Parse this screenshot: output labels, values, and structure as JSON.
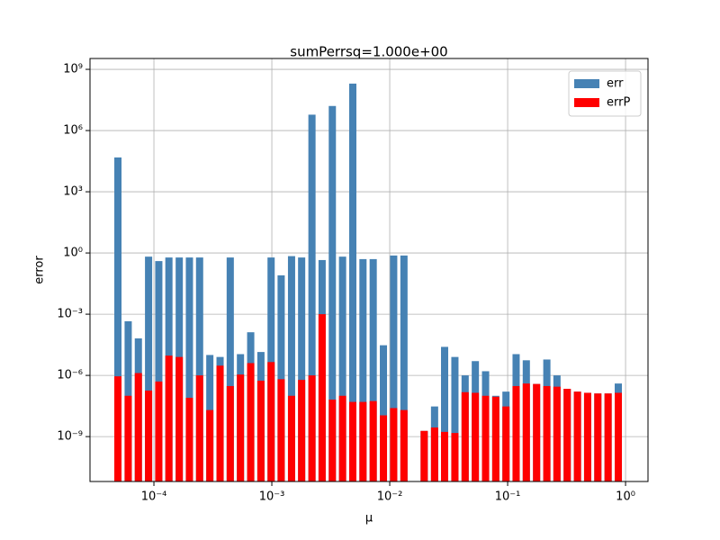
{
  "chart_data": {
    "type": "bar",
    "title": "sumPerrsq=1.000e+00",
    "x_label": "μ",
    "y_label": "error",
    "x": [
      4.95e-05,
      6.05e-05,
      7.38e-05,
      9.01e-05,
      0.00011,
      0.000134,
      0.000164,
      0.0002,
      0.000244,
      0.000298,
      0.000364,
      0.000444,
      0.000542,
      0.000662,
      0.000808,
      0.000986,
      0.0012,
      0.00147,
      0.00179,
      0.00219,
      0.00267,
      0.00326,
      0.00398,
      0.00486,
      0.00593,
      0.00724,
      0.00884,
      0.0108,
      0.0132,
      0.0161,
      0.0196,
      0.024,
      0.0292,
      0.0357,
      0.0436,
      0.0532,
      0.065,
      0.0793,
      0.0968,
      0.118,
      0.144,
      0.176,
      0.215,
      0.262,
      0.32,
      0.391,
      0.477,
      0.582,
      0.711,
      0.868
    ],
    "series": [
      {
        "name": "err",
        "color": "#4682b4",
        "values": [
          48000.0,
          0.00045,
          6.5e-05,
          0.66,
          0.4,
          0.6,
          0.6,
          0.6,
          0.6,
          1e-05,
          8e-06,
          0.6,
          1.1e-05,
          0.00013,
          1.4e-05,
          0.6,
          0.08,
          0.7,
          0.6,
          6000000.0,
          0.45,
          16000000.0,
          0.66,
          200000000.0,
          0.5,
          0.5,
          3e-05,
          0.75,
          0.75,
          null,
          1.9e-09,
          3e-08,
          2.5e-05,
          8e-06,
          1e-06,
          5e-06,
          1.6e-06,
          1e-07,
          1.6e-07,
          1.1e-05,
          5.5e-06,
          3.8e-07,
          6e-06,
          1e-06,
          2.2e-07,
          1.6e-07,
          1.4e-07,
          1.3e-07,
          1.3e-07,
          4e-07
        ]
      },
      {
        "name": "errP",
        "color": "#ff0000",
        "values": [
          9e-07,
          1e-07,
          1.3e-06,
          1.8e-07,
          5e-07,
          9.3e-06,
          8e-06,
          8e-08,
          1e-06,
          2e-08,
          3e-06,
          3e-07,
          1.1e-06,
          4e-06,
          5.5e-07,
          4.5e-06,
          6.5e-07,
          1e-07,
          6e-07,
          1e-06,
          0.001,
          6.5e-08,
          1e-07,
          5e-08,
          5e-08,
          5.5e-08,
          1.1e-08,
          2.5e-08,
          2e-08,
          null,
          1.9e-09,
          2.8e-09,
          1.7e-09,
          1.5e-09,
          1.5e-07,
          1.4e-07,
          1e-07,
          9e-08,
          3e-08,
          3e-07,
          4e-07,
          3.8e-07,
          3e-07,
          2.8e-07,
          2.2e-07,
          1.6e-07,
          1.4e-07,
          1.3e-07,
          1.3e-07,
          1.4e-07
        ]
      }
    ],
    "xscale": "log",
    "yscale": "log",
    "xlim": [
      2.87e-05,
      1.55
    ],
    "ylim": [
      6.3e-12,
      3400000000.0
    ],
    "xticks": [
      {
        "value": 0.0001,
        "label": "10⁻⁴"
      },
      {
        "value": 0.001,
        "label": "10⁻³"
      },
      {
        "value": 0.01,
        "label": "10⁻²"
      },
      {
        "value": 0.1,
        "label": "10⁻¹"
      },
      {
        "value": 1,
        "label": "10⁰"
      }
    ],
    "yticks": [
      {
        "value": 1e-09,
        "label": "10⁻⁹"
      },
      {
        "value": 1e-06,
        "label": "10⁻⁶"
      },
      {
        "value": 0.001,
        "label": "10⁻³"
      },
      {
        "value": 1,
        "label": "10⁰"
      },
      {
        "value": 1000,
        "label": "10³"
      },
      {
        "value": 1000000,
        "label": "10⁶"
      },
      {
        "value": 1000000000,
        "label": "10⁹"
      }
    ],
    "grid": true,
    "legend": "upper right"
  }
}
